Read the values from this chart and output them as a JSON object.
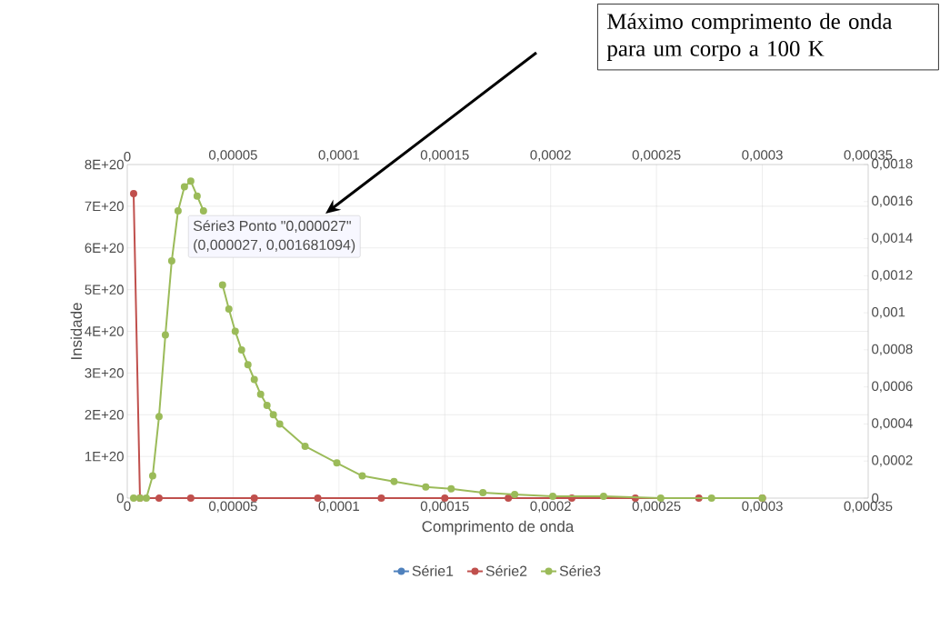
{
  "chart_data": {
    "type": "line",
    "xlabel": "Comprimento de onda",
    "ylabel": "Insidade",
    "annotations": [
      "Máximo comprimento de onda para um corpo a 100 K",
      "Série3 Ponto \"0,000027\"",
      "(0,000027, 0,001681094)"
    ],
    "series": [
      {
        "name": "Série1",
        "color": "#4f81bd",
        "values": [
          null
        ]
      },
      {
        "name": "Série2",
        "color": "#c0504d",
        "x": [
          3e-06,
          6e-06,
          1.5e-05,
          3e-05,
          6e-05,
          9e-05,
          0.00012,
          0.00015,
          0.00018,
          0.00021,
          0.00024,
          0.00027,
          0.0003
        ],
        "values": [
          7.3e+20,
          0,
          0,
          0,
          0,
          0,
          0,
          0,
          0,
          0,
          0,
          0,
          0
        ]
      },
      {
        "name": "Série3",
        "color": "#9bbb59",
        "axis": "y2",
        "x": [
          3e-06,
          6e-06,
          9e-06,
          1.2e-05,
          1.5e-05,
          1.8e-05,
          2.1e-05,
          2.4e-05,
          2.7e-05,
          3e-05,
          3.3e-05,
          3.6e-05,
          3.9e-05,
          4.2e-05,
          4.5e-05,
          4.8e-05,
          5.1e-05,
          5.4e-05,
          5.7e-05,
          6e-05,
          6.3e-05,
          6.6e-05,
          6.9e-05,
          7.2e-05,
          8.4e-05,
          9.9e-05,
          0.000111,
          0.000126,
          0.000141,
          0.000153,
          0.000168,
          0.000183,
          0.000201,
          0.000225,
          0.000252,
          0.000276,
          0.0003
        ],
        "values": [
          0,
          0,
          0,
          0.00012,
          0.00044,
          0.00088,
          0.00128,
          0.00155,
          0.00168,
          0.00171,
          0.00163,
          0.00155,
          null,
          null,
          0.00115,
          0.00102,
          0.0009,
          0.0008,
          0.00072,
          0.00064,
          0.00056,
          0.0005,
          0.00045,
          0.0004,
          0.00028,
          0.00019,
          0.00012,
          9e-05,
          6e-05,
          5e-05,
          3e-05,
          2e-05,
          1e-05,
          1e-05,
          0,
          0,
          0
        ]
      }
    ],
    "xlim": [
      0,
      0.00035
    ],
    "xticks": [
      0,
      {
        "value": 5e-05,
        "label": "0,00005"
      },
      {
        "value": 0.0001,
        "label": "0,0001"
      },
      {
        "value": 0.00015,
        "label": "0,00015"
      },
      {
        "value": 0.0002,
        "label": "0,0002"
      },
      {
        "value": 0.00025,
        "label": "0,00025"
      },
      {
        "value": 0.0003,
        "label": "0,0003"
      },
      {
        "value": 0.00035,
        "label": "0,00035"
      }
    ],
    "x2lim": [
      0,
      0.00035
    ],
    "x2ticks": [
      0,
      {
        "value": 5e-05,
        "label": "0,00005"
      },
      {
        "value": 0.0001,
        "label": "0,0001"
      },
      {
        "value": 0.00015,
        "label": "0,00015"
      },
      {
        "value": 0.0002,
        "label": "0,0002"
      },
      {
        "value": 0.00025,
        "label": "0,00025"
      },
      {
        "value": 0.0003,
        "label": "0,0003"
      },
      {
        "value": 0.00035,
        "label": "0,00035"
      }
    ],
    "ylim": [
      0,
      8e+20
    ],
    "yticks": [
      0,
      {
        "value": 1e+20,
        "label": "1E+20"
      },
      {
        "value": 2e+20,
        "label": "2E+20"
      },
      {
        "value": 3e+20,
        "label": "3E+20"
      },
      {
        "value": 4e+20,
        "label": "4E+20"
      },
      {
        "value": 5e+20,
        "label": "5E+20"
      },
      {
        "value": 6e+20,
        "label": "6E+20"
      },
      {
        "value": 7e+20,
        "label": "7E+20"
      },
      {
        "value": 8e+20,
        "label": "8E+20"
      }
    ],
    "y2lim": [
      0,
      0.0018
    ],
    "y2ticks": [
      0,
      {
        "value": 0.0002,
        "label": "0,0002"
      },
      {
        "value": 0.0004,
        "label": "0,0004"
      },
      {
        "value": 0.0006,
        "label": "0,0006"
      },
      {
        "value": 0.0008,
        "label": "0,0008"
      },
      {
        "value": 0.001,
        "label": "0,001"
      },
      {
        "value": 0.0012,
        "label": "0,0012"
      },
      {
        "value": 0.0014,
        "label": "0,0014"
      },
      {
        "value": 0.0016,
        "label": "0,0016"
      },
      {
        "value": 0.0018,
        "label": "0,0018"
      }
    ],
    "grid": true,
    "legend": "bottom",
    "marker": "circle",
    "line_style": "solid"
  }
}
